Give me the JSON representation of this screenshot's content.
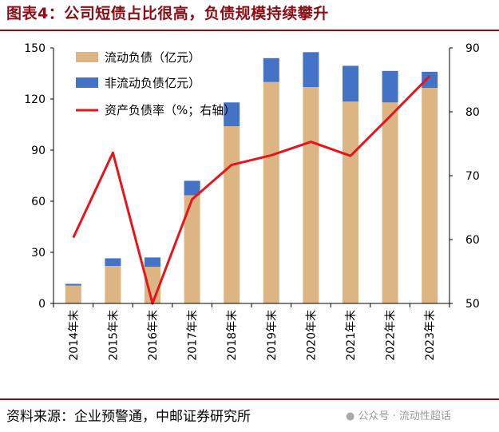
{
  "title": "图表4：公司短债占比很高，负债规模持续攀升",
  "source": "资料来源：企业预警通，中邮证券研究所",
  "watermark": "公众号 · 流动性超话",
  "colors": {
    "current": "#dcb583",
    "noncurrent": "#4472c4",
    "ratio": "#e8141b",
    "accent": "#8b0d15"
  },
  "chart_data": {
    "type": "bar",
    "stacked": true,
    "categories": [
      "2014年末",
      "2015年末",
      "2016年末",
      "2017年末",
      "2018年末",
      "2019年末",
      "2020年末",
      "2021年末",
      "2022年末",
      "2023年末"
    ],
    "series": [
      {
        "name": "流动负债（亿元）",
        "axis": "left",
        "values": [
          10.5,
          22,
          21.5,
          63.5,
          104,
          130,
          127,
          118.5,
          118,
          126.5
        ]
      },
      {
        "name": "非流动负债亿元）",
        "axis": "left",
        "values": [
          1,
          4.5,
          5.5,
          8.5,
          14,
          14,
          20.5,
          21,
          18.5,
          9.5
        ]
      },
      {
        "name": "资产负债率（%；右轴）",
        "axis": "right",
        "type": "line",
        "values": [
          60.3,
          73.6,
          50,
          66.3,
          71.7,
          73.2,
          75.3,
          73.1,
          79.3,
          85.6
        ]
      }
    ],
    "y_left": {
      "ylim": [
        0,
        150
      ],
      "ticks": [
        0,
        30,
        60,
        90,
        120,
        150
      ]
    },
    "y_right": {
      "ylim": [
        50,
        90
      ],
      "ticks": [
        50,
        60,
        70,
        80,
        90
      ]
    },
    "legend": "top-left",
    "grid": false
  }
}
